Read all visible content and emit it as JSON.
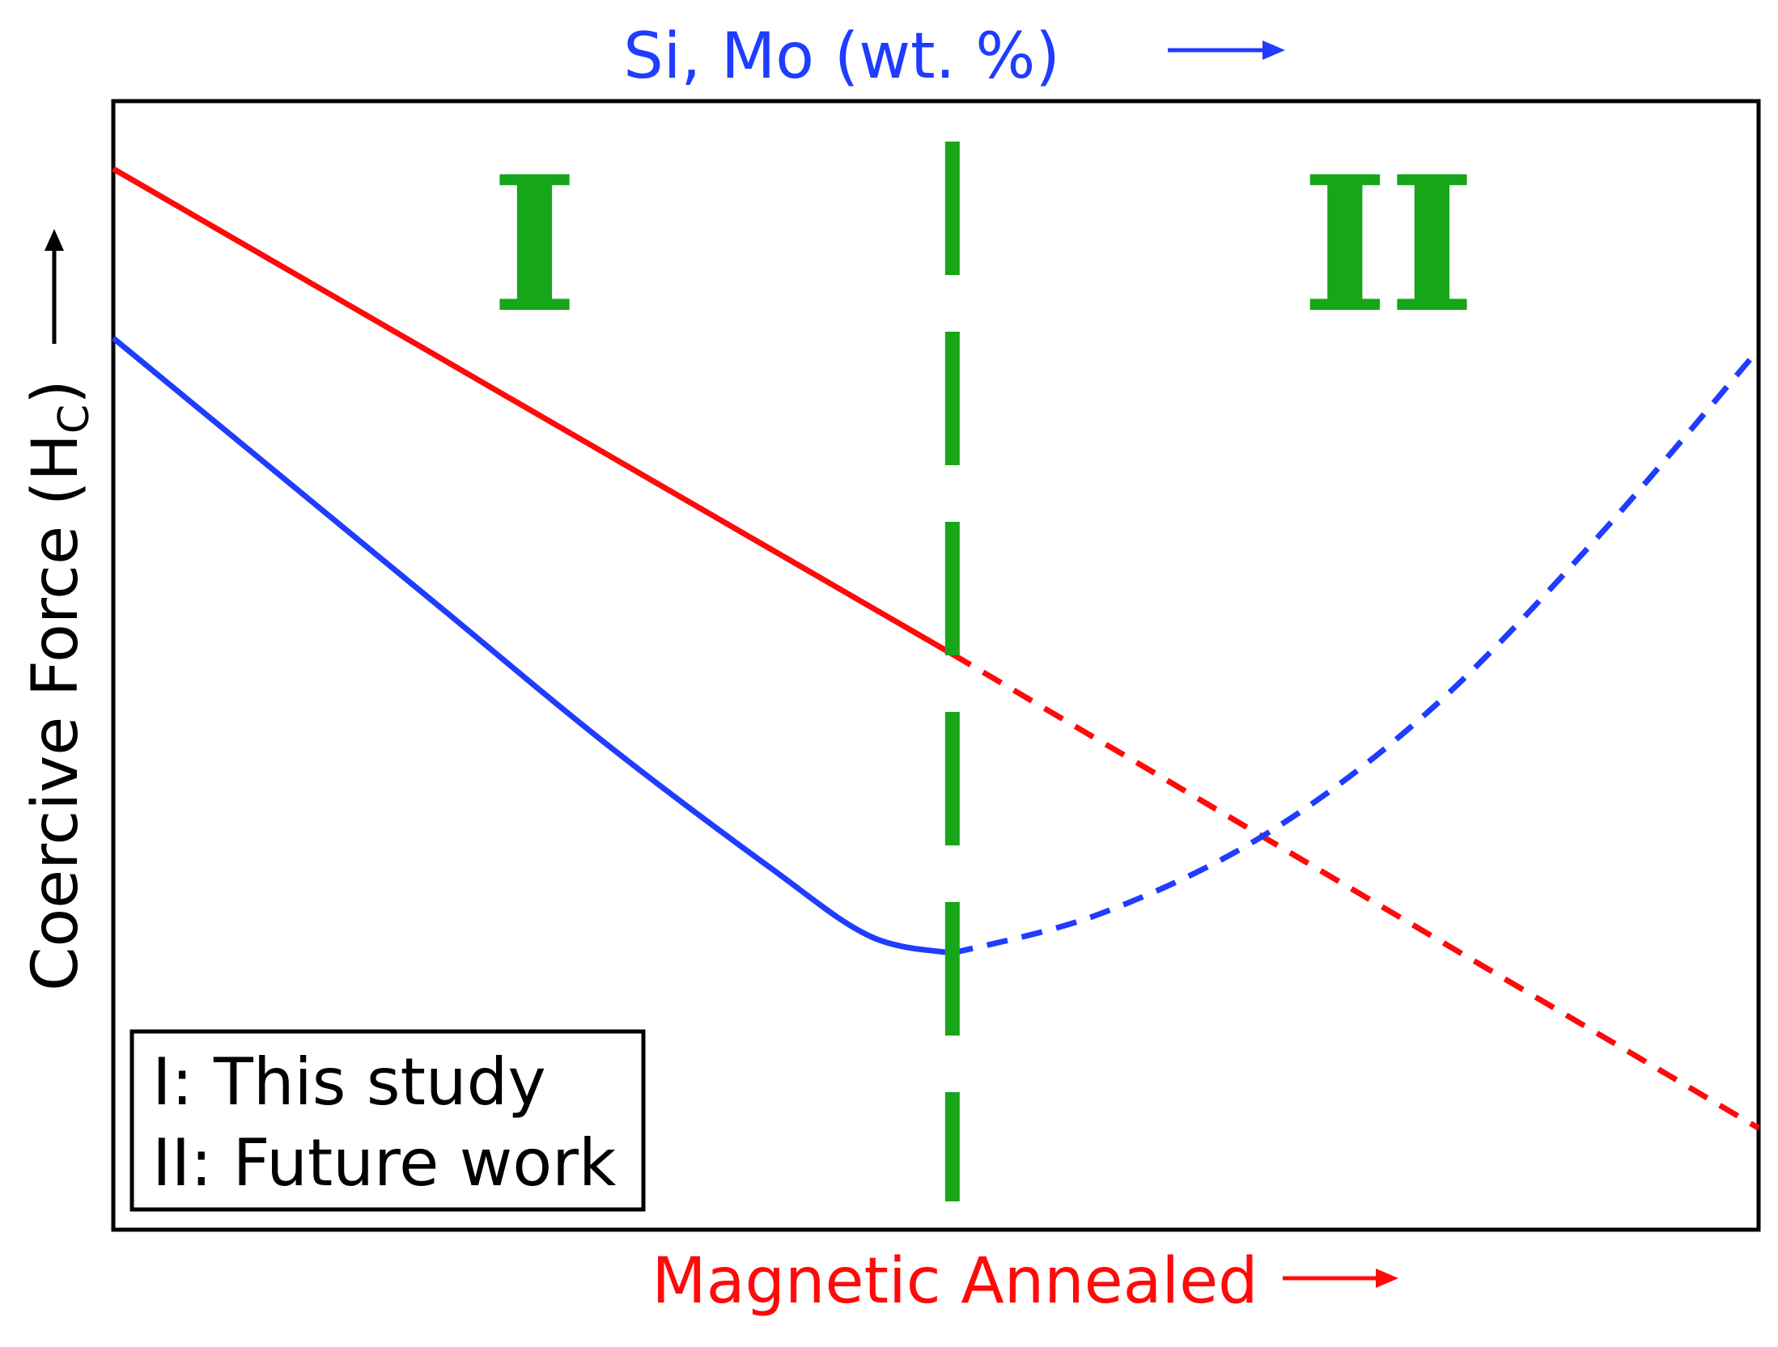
{
  "colors": {
    "blue": "#1f3cff",
    "red": "#ff0a0a",
    "green": "#17a51a",
    "black": "#000000"
  },
  "chart_data": {
    "type": "line",
    "top_axis_label": "Si, Mo (wt. %)",
    "xlabel": "Magnetic Annealed",
    "ylabel": "Coercive Force (H",
    "ylabel_sub": "C",
    "ylabel_close": ")",
    "xlim": [
      0,
      1
    ],
    "ylim": [
      0,
      1
    ],
    "grid": false,
    "boundary_x": 0.51,
    "regions": [
      {
        "label": "I",
        "side": "left"
      },
      {
        "label": "II",
        "side": "right"
      }
    ],
    "legend": {
      "position": "bottom-left",
      "entries": [
        "I: This study",
        "II: Future work"
      ]
    },
    "series": [
      {
        "color": "red",
        "style_by_region": [
          "solid",
          "dashed"
        ],
        "points": [
          {
            "x": 0.0,
            "y": 0.94
          },
          {
            "x": 0.51,
            "y": 0.51
          },
          {
            "x": 1.0,
            "y": 0.09
          }
        ]
      },
      {
        "color": "blue",
        "style_by_region": [
          "solid",
          "dashed"
        ],
        "points": [
          {
            "x": 0.0,
            "y": 0.79
          },
          {
            "x": 0.1,
            "y": 0.67
          },
          {
            "x": 0.2,
            "y": 0.55
          },
          {
            "x": 0.3,
            "y": 0.43
          },
          {
            "x": 0.4,
            "y": 0.32
          },
          {
            "x": 0.46,
            "y": 0.26
          },
          {
            "x": 0.51,
            "y": 0.245
          },
          {
            "x": 0.6,
            "y": 0.28
          },
          {
            "x": 0.7,
            "y": 0.35
          },
          {
            "x": 0.8,
            "y": 0.46
          },
          {
            "x": 0.9,
            "y": 0.61
          },
          {
            "x": 1.0,
            "y": 0.78
          }
        ]
      }
    ]
  }
}
